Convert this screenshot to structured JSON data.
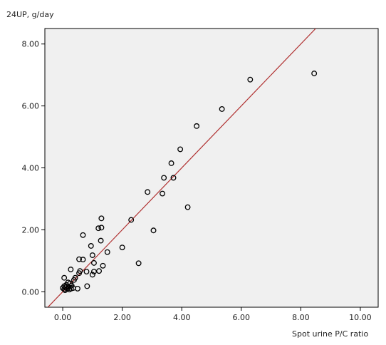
{
  "chart_data": {
    "type": "scatter",
    "ylabel": "24UP, g/day",
    "xlabel": "Spot urine P/C ratio",
    "xlim": [
      -0.6,
      10.6
    ],
    "ylim": [
      -0.5,
      8.5
    ],
    "x_ticks": [
      "0.00",
      "2.00",
      "4.00",
      "6.00",
      "8.00",
      "10.00"
    ],
    "y_ticks": [
      "0.00",
      "2.00",
      "4.00",
      "6.00",
      "8.00"
    ],
    "x_tick_values": [
      0,
      2,
      4,
      6,
      8,
      10
    ],
    "y_tick_values": [
      0,
      2,
      4,
      6,
      8
    ],
    "grid": false,
    "reference_line": {
      "type": "identity",
      "color": "#b03030"
    },
    "plot_background": "#f0f0f0",
    "marker_color": "#000000",
    "points": [
      [
        8.45,
        7.05
      ],
      [
        6.3,
        6.85
      ],
      [
        5.35,
        5.9
      ],
      [
        4.5,
        5.35
      ],
      [
        3.95,
        4.6
      ],
      [
        3.65,
        4.15
      ],
      [
        3.4,
        3.68
      ],
      [
        3.72,
        3.68
      ],
      [
        2.85,
        3.22
      ],
      [
        3.35,
        3.17
      ],
      [
        4.2,
        2.73
      ],
      [
        2.3,
        2.32
      ],
      [
        1.3,
        2.37
      ],
      [
        1.2,
        2.05
      ],
      [
        1.3,
        2.07
      ],
      [
        3.05,
        1.98
      ],
      [
        0.68,
        1.83
      ],
      [
        1.28,
        1.65
      ],
      [
        0.95,
        1.48
      ],
      [
        2.0,
        1.43
      ],
      [
        1.5,
        1.28
      ],
      [
        1.0,
        1.18
      ],
      [
        0.55,
        1.05
      ],
      [
        0.68,
        1.04
      ],
      [
        1.05,
        0.93
      ],
      [
        2.55,
        0.92
      ],
      [
        1.35,
        0.84
      ],
      [
        1.22,
        0.67
      ],
      [
        1.05,
        0.65
      ],
      [
        0.8,
        0.65
      ],
      [
        0.58,
        0.67
      ],
      [
        1.0,
        0.55
      ],
      [
        0.55,
        0.6
      ],
      [
        0.27,
        0.72
      ],
      [
        0.42,
        0.45
      ],
      [
        0.38,
        0.38
      ],
      [
        0.05,
        0.45
      ],
      [
        0.18,
        0.3
      ],
      [
        0.25,
        0.27
      ],
      [
        0.12,
        0.22
      ],
      [
        0.3,
        0.2
      ],
      [
        0.05,
        0.18
      ],
      [
        0.2,
        0.15
      ],
      [
        0.1,
        0.14
      ],
      [
        0.35,
        0.12
      ],
      [
        0.0,
        0.12
      ],
      [
        0.15,
        0.1
      ],
      [
        0.28,
        0.1
      ],
      [
        0.5,
        0.1
      ],
      [
        0.82,
        0.18
      ],
      [
        0.05,
        0.08
      ],
      [
        0.22,
        0.07
      ],
      [
        0.08,
        0.05
      ]
    ]
  }
}
